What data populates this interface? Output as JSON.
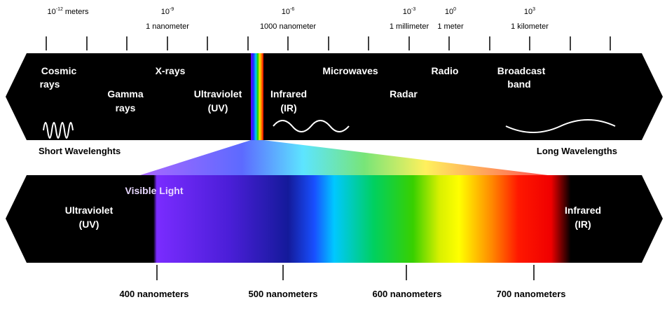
{
  "scale": [
    {
      "base": "10",
      "exponent": "-12",
      "unit": "meters"
    },
    {
      "base": "10",
      "exponent": "-9",
      "name": "1 nanometer"
    },
    {
      "base": "10",
      "exponent": "-6",
      "name": "1000 nanometer"
    },
    {
      "base": "10",
      "exponent": "-3",
      "name": "1 millimeter"
    },
    {
      "base": "10",
      "exponent": "0",
      "name": "1 meter"
    },
    {
      "base": "10",
      "exponent": "3",
      "name": "1 kilometer"
    }
  ],
  "spectrum": {
    "bands": [
      {
        "lines": [
          "Cosmic",
          "rays"
        ]
      },
      {
        "lines": [
          "Gamma",
          "rays"
        ]
      },
      {
        "lines": [
          "X-rays"
        ]
      },
      {
        "lines": [
          "Ultraviolet",
          "(UV)"
        ]
      },
      {
        "lines": [
          "Infrared",
          "(IR)"
        ]
      },
      {
        "lines": [
          "Microwaves"
        ]
      },
      {
        "lines": [
          "Radar"
        ]
      },
      {
        "lines": [
          "Radio"
        ]
      },
      {
        "lines": [
          "Broadcast",
          "band"
        ]
      }
    ],
    "short_label": "Short Wavelenghts",
    "long_label": "Long Wavelengths"
  },
  "visible": {
    "title": "Visible Light",
    "left": {
      "lines": [
        "Ultraviolet",
        "(UV)"
      ]
    },
    "right": {
      "lines": [
        "Infrared",
        "(IR)"
      ]
    },
    "ticks": [
      "400 nanometers",
      "500 nanometers",
      "600 nanometers",
      "700 nanometers"
    ]
  }
}
